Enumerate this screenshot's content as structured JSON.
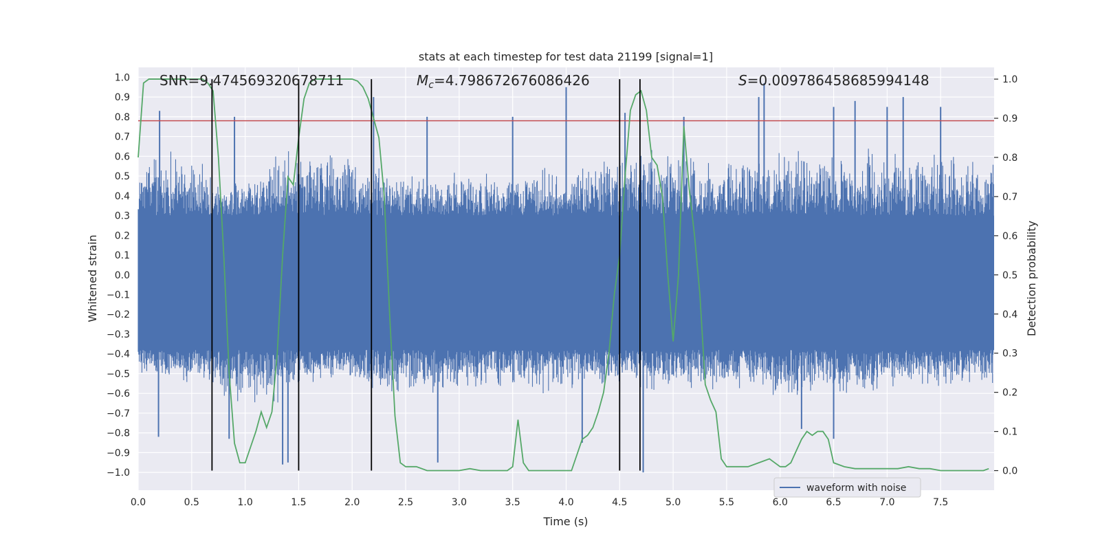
{
  "chart_data": {
    "type": "line",
    "title": "stats at each timestep for test data 21199 [signal=1]",
    "xlabel": "Time (s)",
    "ylabel_left": "Whitened strain",
    "ylabel_right": "Detection probability",
    "xlim": [
      0.0,
      8.0
    ],
    "ylim_left": [
      -1.09,
      1.05
    ],
    "ylim_right": [
      -0.05,
      1.03
    ],
    "x_ticks": [
      "0.0",
      "0.5",
      "1.0",
      "1.5",
      "2.0",
      "2.5",
      "3.0",
      "3.5",
      "4.0",
      "4.5",
      "5.0",
      "5.5",
      "6.0",
      "6.5",
      "7.0",
      "7.5"
    ],
    "x_tick_values": [
      0.0,
      0.5,
      1.0,
      1.5,
      2.0,
      2.5,
      3.0,
      3.5,
      4.0,
      4.5,
      5.0,
      5.5,
      6.0,
      6.5,
      7.0,
      7.5
    ],
    "y_left_ticks": [
      "1.0",
      "0.9",
      "0.8",
      "0.7",
      "0.6",
      "0.5",
      "0.4",
      "0.3",
      "0.2",
      "0.1",
      "0.0",
      "−0.1",
      "−0.2",
      "−0.3",
      "−0.4",
      "−0.5",
      "−0.6",
      "−0.7",
      "−0.8",
      "−0.9",
      "−1.0"
    ],
    "y_left_tick_values": [
      1.0,
      0.9,
      0.8,
      0.7,
      0.6,
      0.5,
      0.4,
      0.3,
      0.2,
      0.1,
      0.0,
      -0.1,
      -0.2,
      -0.3,
      -0.4,
      -0.5,
      -0.6,
      -0.7,
      -0.8,
      -0.9,
      -1.0
    ],
    "y_right_ticks": [
      "1.0",
      "0.9",
      "0.8",
      "0.7",
      "0.6",
      "0.5",
      "0.4",
      "0.3",
      "0.2",
      "0.1",
      "0.0"
    ],
    "y_right_tick_values": [
      1.0,
      0.9,
      0.8,
      0.7,
      0.6,
      0.5,
      0.4,
      0.3,
      0.2,
      0.1,
      0.0
    ],
    "annotations": {
      "snr": "SNR=9.474569320678711",
      "mc": "=4.798672676086426",
      "mc_symbol": "M",
      "mc_sub": "c",
      "s": "=0.009786458685994148",
      "s_symbol": "S"
    },
    "threshold": {
      "value": 0.78,
      "color": "#c44e52"
    },
    "vertical_lines": [
      0.69,
      1.5,
      2.18,
      4.5,
      4.69
    ],
    "series": [
      {
        "name": "waveform with noise",
        "color": "#4c72b0",
        "axis": "left",
        "envelope_positive": [
          [
            0.0,
            0.55
          ],
          [
            0.2,
            0.6
          ],
          [
            0.4,
            0.6
          ],
          [
            0.69,
            0.52
          ],
          [
            0.8,
            0.45
          ],
          [
            1.0,
            0.5
          ],
          [
            1.2,
            0.55
          ],
          [
            1.4,
            0.62
          ],
          [
            1.6,
            0.62
          ],
          [
            1.8,
            0.62
          ],
          [
            2.0,
            0.62
          ],
          [
            2.2,
            0.58
          ],
          [
            2.4,
            0.48
          ],
          [
            2.6,
            0.5
          ],
          [
            3.0,
            0.52
          ],
          [
            3.5,
            0.52
          ],
          [
            4.0,
            0.55
          ],
          [
            4.4,
            0.6
          ],
          [
            4.6,
            0.6
          ],
          [
            5.0,
            0.62
          ],
          [
            5.5,
            0.58
          ],
          [
            6.0,
            0.62
          ],
          [
            6.5,
            0.62
          ],
          [
            7.0,
            0.62
          ],
          [
            7.5,
            0.6
          ],
          [
            8.0,
            0.58
          ]
        ],
        "envelope_negative": [
          [
            0.0,
            -0.5
          ],
          [
            0.2,
            -0.55
          ],
          [
            0.4,
            -0.55
          ],
          [
            0.69,
            -0.55
          ],
          [
            0.8,
            -0.6
          ],
          [
            1.0,
            -0.65
          ],
          [
            1.2,
            -0.65
          ],
          [
            1.4,
            -0.62
          ],
          [
            1.6,
            -0.55
          ],
          [
            1.8,
            -0.55
          ],
          [
            2.0,
            -0.52
          ],
          [
            2.2,
            -0.58
          ],
          [
            2.4,
            -0.6
          ],
          [
            2.6,
            -0.6
          ],
          [
            3.0,
            -0.58
          ],
          [
            3.5,
            -0.58
          ],
          [
            4.0,
            -0.6
          ],
          [
            4.4,
            -0.55
          ],
          [
            4.6,
            -0.55
          ],
          [
            5.0,
            -0.6
          ],
          [
            5.5,
            -0.58
          ],
          [
            6.0,
            -0.62
          ],
          [
            6.5,
            -0.62
          ],
          [
            7.0,
            -0.58
          ],
          [
            7.5,
            -0.55
          ],
          [
            8.0,
            -0.55
          ]
        ],
        "spikes": [
          [
            0.2,
            0.83
          ],
          [
            0.19,
            -0.82
          ],
          [
            0.9,
            0.8
          ],
          [
            0.85,
            -0.83
          ],
          [
            1.4,
            -0.95
          ],
          [
            1.35,
            -0.96
          ],
          [
            2.2,
            0.9
          ],
          [
            2.7,
            0.8
          ],
          [
            2.8,
            -0.95
          ],
          [
            3.5,
            0.8
          ],
          [
            4.0,
            0.95
          ],
          [
            4.15,
            -0.85
          ],
          [
            4.55,
            0.82
          ],
          [
            4.72,
            -1.0
          ],
          [
            5.1,
            0.8
          ],
          [
            5.85,
            0.97
          ],
          [
            5.8,
            0.9
          ],
          [
            6.2,
            -0.78
          ],
          [
            6.5,
            0.85
          ],
          [
            6.7,
            0.88
          ],
          [
            7.0,
            0.85
          ],
          [
            7.15,
            0.9
          ],
          [
            7.5,
            0.85
          ],
          [
            6.5,
            -0.83
          ]
        ]
      },
      {
        "name": "detection probability",
        "color": "#55a868",
        "axis": "right",
        "x": [
          0.0,
          0.05,
          0.1,
          0.15,
          0.2,
          0.25,
          0.3,
          0.35,
          0.4,
          0.45,
          0.5,
          0.55,
          0.6,
          0.65,
          0.7,
          0.75,
          0.8,
          0.85,
          0.9,
          0.95,
          1.0,
          1.05,
          1.1,
          1.15,
          1.2,
          1.25,
          1.3,
          1.35,
          1.4,
          1.45,
          1.5,
          1.55,
          1.6,
          1.65,
          1.7,
          1.75,
          1.8,
          1.85,
          1.9,
          1.95,
          2.0,
          2.05,
          2.1,
          2.15,
          2.2,
          2.25,
          2.3,
          2.35,
          2.4,
          2.45,
          2.5,
          2.6,
          2.7,
          2.8,
          2.9,
          3.0,
          3.1,
          3.2,
          3.3,
          3.4,
          3.45,
          3.5,
          3.55,
          3.6,
          3.65,
          3.7,
          3.8,
          3.9,
          4.0,
          4.05,
          4.1,
          4.15,
          4.2,
          4.25,
          4.3,
          4.35,
          4.4,
          4.45,
          4.5,
          4.55,
          4.6,
          4.65,
          4.7,
          4.75,
          4.8,
          4.85,
          4.9,
          4.95,
          5.0,
          5.05,
          5.1,
          5.15,
          5.2,
          5.25,
          5.3,
          5.35,
          5.4,
          5.45,
          5.5,
          5.6,
          5.7,
          5.8,
          5.9,
          6.0,
          6.05,
          6.1,
          6.15,
          6.2,
          6.25,
          6.3,
          6.35,
          6.4,
          6.45,
          6.5,
          6.6,
          6.7,
          6.8,
          6.9,
          7.0,
          7.1,
          7.2,
          7.3,
          7.4,
          7.5,
          7.6,
          7.7,
          7.8,
          7.9,
          7.95
        ],
        "values": [
          0.8,
          0.99,
          1.0,
          1.0,
          1.0,
          1.0,
          1.0,
          1.0,
          1.0,
          1.0,
          1.0,
          1.0,
          1.0,
          0.99,
          0.97,
          0.8,
          0.55,
          0.25,
          0.07,
          0.02,
          0.02,
          0.06,
          0.1,
          0.15,
          0.11,
          0.15,
          0.3,
          0.55,
          0.75,
          0.73,
          0.85,
          0.95,
          0.99,
          1.0,
          1.0,
          1.0,
          1.0,
          1.0,
          1.0,
          1.0,
          1.0,
          0.995,
          0.98,
          0.95,
          0.9,
          0.85,
          0.7,
          0.4,
          0.14,
          0.02,
          0.01,
          0.01,
          0.0,
          0.0,
          0.0,
          0.0,
          0.005,
          0.0,
          0.0,
          0.0,
          0.0,
          0.01,
          0.13,
          0.02,
          0.0,
          0.0,
          0.0,
          0.0,
          0.0,
          0.0,
          0.04,
          0.08,
          0.09,
          0.11,
          0.15,
          0.2,
          0.3,
          0.45,
          0.55,
          0.75,
          0.92,
          0.96,
          0.97,
          0.92,
          0.8,
          0.78,
          0.7,
          0.5,
          0.33,
          0.5,
          0.88,
          0.72,
          0.6,
          0.45,
          0.22,
          0.18,
          0.15,
          0.03,
          0.01,
          0.01,
          0.01,
          0.02,
          0.03,
          0.01,
          0.01,
          0.02,
          0.05,
          0.08,
          0.1,
          0.09,
          0.1,
          0.1,
          0.08,
          0.02,
          0.01,
          0.005,
          0.005,
          0.005,
          0.005,
          0.005,
          0.01,
          0.005,
          0.005,
          0.0,
          0.0,
          0.0,
          0.0,
          0.0,
          0.005
        ]
      }
    ],
    "legend": {
      "label": "waveform with noise",
      "placement": "lower-right"
    },
    "grid": true
  }
}
